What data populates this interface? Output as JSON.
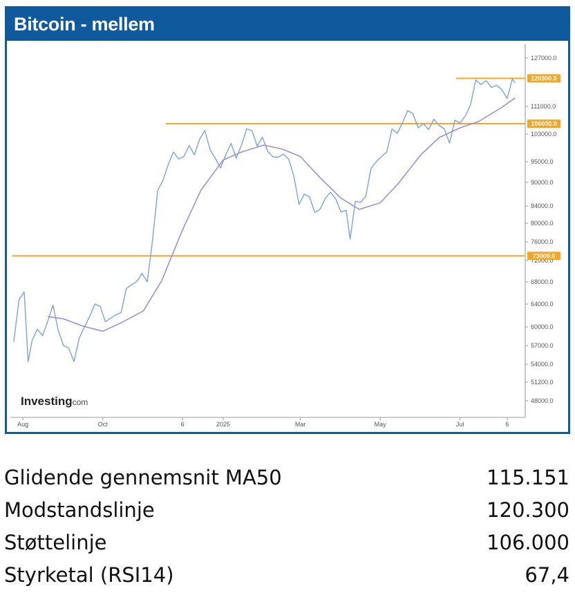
{
  "panel": {
    "title": "Bitcoin - mellem"
  },
  "chart_data": {
    "type": "line",
    "source_logo": "Investing.com",
    "x_ticks": [
      "Aug",
      "Oct",
      "6",
      "2025",
      "Mar",
      "May",
      "Jul",
      "6"
    ],
    "y_ticks": [
      127000,
      111000,
      103000,
      95000,
      90000,
      84000,
      80000,
      76000,
      72000,
      68000,
      64000,
      60000,
      57000,
      54000,
      51200,
      48000
    ],
    "y_tick_labels": [
      "127000.0",
      "111000.0",
      "103000.0",
      "95000.0",
      "90000.0",
      "84000.0",
      "80000.0",
      "76000.0",
      "72000.0",
      "68000.0",
      "64000.0",
      "60000.0",
      "57000.0",
      "54000.0",
      "51200.0",
      "48000.0"
    ],
    "horizontal_lines": [
      {
        "label": "120300.0",
        "value": 120300,
        "color": "#f5a623"
      },
      {
        "label": "106000.0",
        "value": 106000,
        "color": "#f5a623"
      },
      {
        "label": "73000.0",
        "value": 73000,
        "color": "#f5a623"
      }
    ],
    "series": [
      {
        "kind": "price",
        "color": "#7ba3d8",
        "x": [
          "2024-07-25",
          "2024-07-29",
          "2024-08-02",
          "2024-08-05",
          "2024-08-08",
          "2024-08-12",
          "2024-08-16",
          "2024-08-20",
          "2024-08-24",
          "2024-08-28",
          "2024-09-01",
          "2024-09-05",
          "2024-09-09",
          "2024-09-13",
          "2024-09-17",
          "2024-09-21",
          "2024-09-25",
          "2024-09-29",
          "2024-10-03",
          "2024-10-07",
          "2024-10-11",
          "2024-10-15",
          "2024-10-19",
          "2024-10-23",
          "2024-10-27",
          "2024-10-31",
          "2024-11-04",
          "2024-11-08",
          "2024-11-12",
          "2024-11-16",
          "2024-11-20",
          "2024-11-24",
          "2024-11-28",
          "2024-12-02",
          "2024-12-06",
          "2024-12-10",
          "2024-12-14",
          "2024-12-18",
          "2024-12-22",
          "2024-12-26",
          "2024-12-30",
          "2025-01-03",
          "2025-01-07",
          "2025-01-11",
          "2025-01-15",
          "2025-01-19",
          "2025-01-23",
          "2025-01-27",
          "2025-01-31",
          "2025-02-04",
          "2025-02-08",
          "2025-02-12",
          "2025-02-16",
          "2025-02-20",
          "2025-02-24",
          "2025-02-28",
          "2025-03-04",
          "2025-03-08",
          "2025-03-12",
          "2025-03-16",
          "2025-03-20",
          "2025-03-24",
          "2025-03-28",
          "2025-04-01",
          "2025-04-05",
          "2025-04-08",
          "2025-04-12",
          "2025-04-16",
          "2025-04-20",
          "2025-04-24",
          "2025-04-28",
          "2025-05-02",
          "2025-05-06",
          "2025-05-10",
          "2025-05-14",
          "2025-05-18",
          "2025-05-22",
          "2025-05-26",
          "2025-05-30",
          "2025-06-03",
          "2025-06-07",
          "2025-06-11",
          "2025-06-15",
          "2025-06-19",
          "2025-06-23",
          "2025-06-27",
          "2025-07-01",
          "2025-07-05",
          "2025-07-09",
          "2025-07-13",
          "2025-07-17",
          "2025-07-21",
          "2025-07-25",
          "2025-07-29",
          "2025-08-02",
          "2025-08-06",
          "2025-08-10",
          "2025-08-12"
        ],
        "values": [
          57600,
          64800,
          66200,
          54400,
          57800,
          59600,
          58600,
          61000,
          63800,
          59400,
          57000,
          56600,
          54400,
          58200,
          60000,
          61800,
          64000,
          63600,
          60900,
          61500,
          62100,
          62500,
          66800,
          67500,
          68100,
          69600,
          68000,
          76200,
          88000,
          90500,
          94300,
          97800,
          95800,
          96500,
          99700,
          97000,
          101500,
          104000,
          98500,
          96000,
          93500,
          97000,
          100300,
          96000,
          99800,
          104500,
          104000,
          99500,
          102100,
          98000,
          96400,
          96300,
          97200,
          95800,
          91500,
          84400,
          87000,
          86300,
          82500,
          83200,
          85900,
          87500,
          85800,
          82600,
          83000,
          76600,
          85200,
          84900,
          86500,
          93400,
          95000,
          96500,
          97800,
          104500,
          103200,
          106200,
          109800,
          108900,
          104800,
          106000,
          104300,
          107300,
          105500,
          104500,
          100400,
          107000,
          106200,
          108200,
          111500,
          119800,
          118200,
          119500,
          117300,
          118000,
          116500,
          113600,
          120100,
          118800
        ]
      },
      {
        "kind": "moving_average",
        "color": "#9b8fd6",
        "x": [
          "2024-08-20",
          "2024-09-01",
          "2024-09-15",
          "2024-10-01",
          "2024-10-15",
          "2024-11-01",
          "2024-11-15",
          "2024-12-01",
          "2024-12-15",
          "2025-01-01",
          "2025-01-15",
          "2025-02-01",
          "2025-02-15",
          "2025-03-01",
          "2025-03-15",
          "2025-04-01",
          "2025-04-15",
          "2025-05-01",
          "2025-05-15",
          "2025-06-01",
          "2025-06-15",
          "2025-07-01",
          "2025-07-15",
          "2025-08-01",
          "2025-08-12"
        ],
        "values": [
          61800,
          61400,
          60200,
          59300,
          60700,
          62800,
          68200,
          78600,
          88000,
          95500,
          97800,
          99800,
          98700,
          96500,
          91500,
          86000,
          83200,
          84800,
          89800,
          97000,
          102000,
          104800,
          106600,
          110500,
          113800
        ]
      }
    ]
  },
  "stats": [
    {
      "label": "Glidende gennemsnit MA50",
      "value": "115.151"
    },
    {
      "label": "Modstandslinje",
      "value": "120.300"
    },
    {
      "label": "Støttelinje",
      "value": "106.000"
    },
    {
      "label": "Styrketal (RSI14)",
      "value": "67,4"
    }
  ]
}
